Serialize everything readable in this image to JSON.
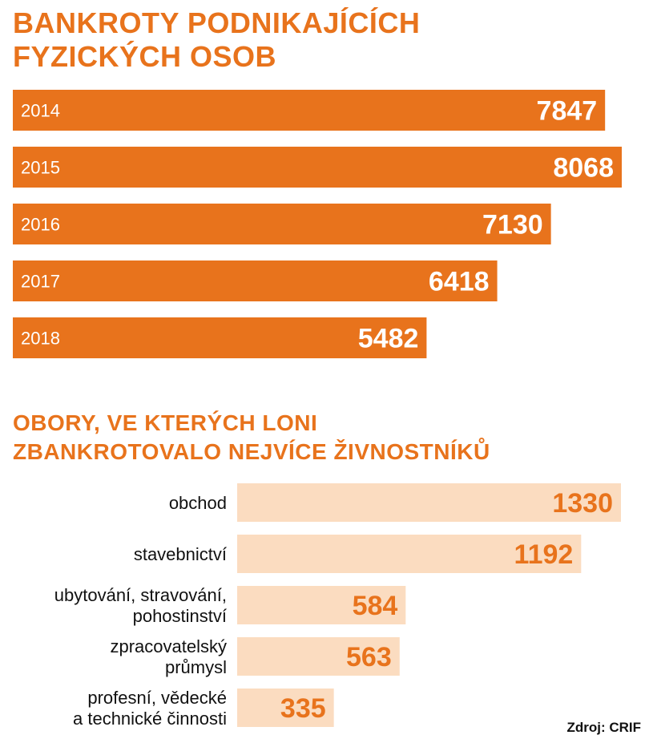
{
  "colors": {
    "accent": "#e8731c",
    "light_bar": "#fbdcc0",
    "bar_text_dark": "#ffffff",
    "label_text": "#111111"
  },
  "chart_data": [
    {
      "type": "bar",
      "orientation": "horizontal",
      "title_lines": [
        "BANKROTY PODNIKAJÍCÍCH",
        "FYZICKÝCH OSOB"
      ],
      "categories": [
        "2014",
        "2015",
        "2016",
        "2017",
        "2018"
      ],
      "values": [
        7847,
        8068,
        7130,
        6418,
        5482
      ],
      "xlim": [
        0,
        8068
      ]
    },
    {
      "type": "bar",
      "orientation": "horizontal",
      "title_lines": [
        "OBORY, VE KTERÝCH LONI",
        "ZBANKROTOVALO NEJVÍCE ŽIVNOSTNÍKŮ"
      ],
      "categories": [
        [
          "obchod"
        ],
        [
          "stavebnictví"
        ],
        [
          "ubytování, stravování,",
          "pohostinství"
        ],
        [
          "zpracovatelský",
          "průmysl"
        ],
        [
          "profesní, vědecké",
          "a technické činnosti"
        ]
      ],
      "values": [
        1330,
        1192,
        584,
        563,
        335
      ],
      "xlim": [
        0,
        1330
      ]
    }
  ],
  "source": "Zdroj: CRIF"
}
